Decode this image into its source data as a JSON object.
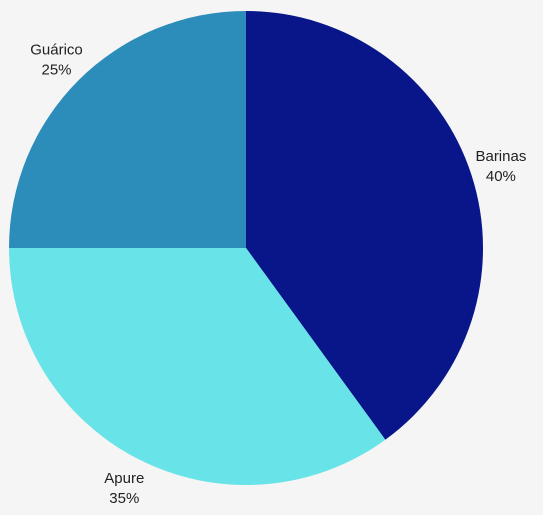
{
  "chart_data": {
    "type": "pie",
    "title": "",
    "slices": [
      {
        "label": "Barinas",
        "value": 40,
        "value_label": "40%",
        "color": "#08168a"
      },
      {
        "label": "Apure",
        "value": 35,
        "value_label": "35%",
        "color": "#68e4e8"
      },
      {
        "label": "Guárico",
        "value": 25,
        "value_label": "25%",
        "color": "#2c8cba"
      }
    ],
    "start_angle": "12 o'clock",
    "direction": "clockwise",
    "legend": "none"
  },
  "colors": {
    "background": "#f5f5f5",
    "label_text": "#222222"
  }
}
